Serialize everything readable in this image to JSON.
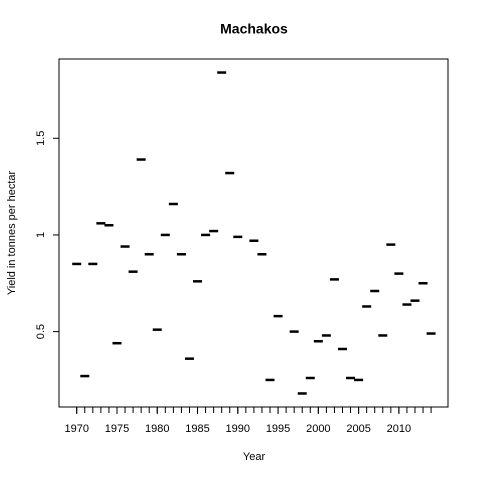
{
  "chart_data": {
    "type": "scatter",
    "title": "Machakos",
    "x_label": "Year",
    "y_label": "Yield in tonnes per hectar",
    "x": [
      1970,
      1971,
      1972,
      1973,
      1974,
      1975,
      1976,
      1977,
      1978,
      1979,
      1980,
      1981,
      1982,
      1983,
      1984,
      1985,
      1986,
      1987,
      1988,
      1989,
      1990,
      1991,
      1992,
      1993,
      1994,
      1995,
      1996,
      1997,
      1998,
      1999,
      2000,
      2001,
      2002,
      2003,
      2004,
      2005,
      2006,
      2007,
      2008,
      2009,
      2010,
      2011,
      2012,
      2013,
      2014
    ],
    "values": [
      0.85,
      0.27,
      0.85,
      1.06,
      1.05,
      0.44,
      0.94,
      0.81,
      1.39,
      0.9,
      0.51,
      1.0,
      1.16,
      0.9,
      0.36,
      0.76,
      1.0,
      1.02,
      1.84,
      1.32,
      0.99,
      null,
      0.97,
      0.9,
      0.25,
      0.58,
      null,
      0.5,
      0.18,
      0.26,
      0.45,
      0.48,
      0.77,
      0.41,
      0.26,
      0.25,
      0.63,
      0.71,
      0.48,
      0.95,
      0.8,
      0.64,
      0.66,
      0.75,
      0.49
    ],
    "color": "#000000",
    "xlim": [
      1967.8,
      2016.1
    ],
    "xticks": [
      1970,
      1975,
      1980,
      1985,
      1990,
      1995,
      2000,
      2005,
      2010
    ],
    "ylim": [
      0.11,
      1.91
    ],
    "yticks": [
      0.5,
      1.0,
      1.5
    ]
  }
}
